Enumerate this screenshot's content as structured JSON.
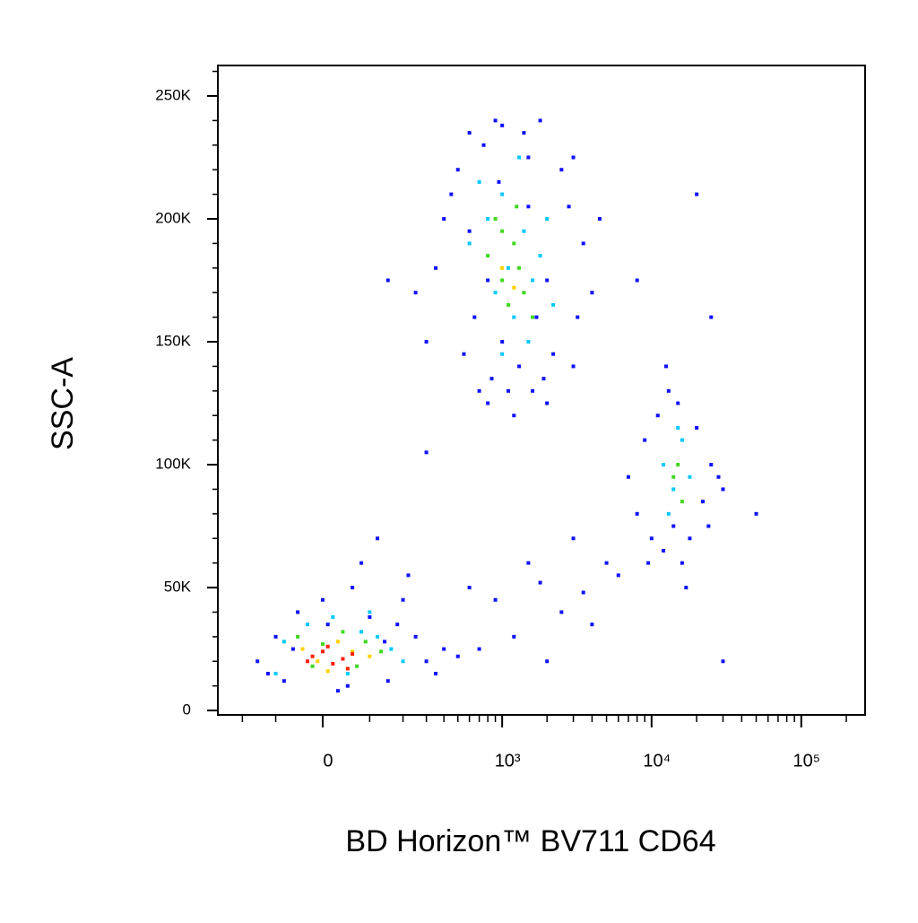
{
  "chart_data": {
    "type": "scatter",
    "xlabel": "BD Horizon™ BV711 CD64",
    "ylabel": "SSC-A",
    "xscale": "biexponential",
    "xlim": [
      -306,
      267000
    ],
    "ylim": [
      -1800,
      262400
    ],
    "xticks": [
      0,
      {
        "value": 1000,
        "label": "10³"
      },
      {
        "value": 10000,
        "label": "10⁴"
      },
      {
        "value": 100000,
        "label": "10⁵"
      }
    ],
    "yticks": [
      0,
      {
        "value": 50000,
        "label": "50K"
      },
      {
        "value": 100000,
        "label": "100K"
      },
      {
        "value": 150000,
        "label": "150K"
      },
      {
        "value": 200000,
        "label": "200K"
      },
      {
        "value": 250000,
        "label": "250K"
      }
    ],
    "xminorticks": [
      -200,
      -100,
      100,
      200,
      300,
      400,
      500,
      600,
      700,
      800,
      900,
      2000,
      3000,
      4000,
      5000,
      6000,
      7000,
      8000,
      9000,
      20000,
      30000,
      40000,
      50000,
      60000,
      70000,
      80000,
      90000,
      200000
    ],
    "yminorticks": [
      10000,
      20000,
      30000,
      40000,
      60000,
      70000,
      80000,
      90000,
      110000,
      120000,
      130000,
      140000,
      160000,
      170000,
      180000,
      190000,
      210000,
      220000,
      230000,
      240000,
      260000
    ],
    "series": [
      {
        "color": "#1010ff",
        "x": [
          250,
          300,
          400,
          500,
          600,
          700,
          800,
          900,
          1000,
          1200,
          1400,
          1600,
          1800,
          2000,
          2500,
          3000,
          3500,
          4000,
          4500,
          350,
          450,
          550,
          650,
          750,
          850,
          950,
          1100,
          1300,
          1500,
          1700,
          1900,
          2200,
          2800,
          3200,
          600,
          800,
          1000,
          1500,
          2000,
          3000,
          -150,
          -100,
          -80,
          -50,
          0,
          30,
          60,
          100,
          150,
          200,
          250,
          300,
          400,
          500,
          -120,
          80,
          120,
          180,
          220,
          350,
          -60,
          10,
          50,
          140,
          7000,
          8000,
          9000,
          10000,
          11000,
          12000,
          13000,
          14000,
          15000,
          16000,
          18000,
          20000,
          22000,
          25000,
          28000,
          30000,
          9500,
          12500,
          17000,
          24000,
          600,
          900,
          1200,
          1800,
          2500,
          3500,
          5000,
          6000,
          2000,
          4000,
          700,
          1500,
          3000,
          300,
          30000,
          50000,
          20000,
          8000,
          25000,
          150
        ],
        "y": [
          170000,
          150000,
          200000,
          220000,
          235000,
          130000,
          125000,
          240000,
          238000,
          120000,
          235000,
          130000,
          240000,
          125000,
          220000,
          140000,
          190000,
          170000,
          200000,
          180000,
          210000,
          145000,
          160000,
          230000,
          135000,
          215000,
          130000,
          140000,
          225000,
          160000,
          135000,
          145000,
          205000,
          160000,
          195000,
          175000,
          150000,
          205000,
          175000,
          225000,
          20000,
          30000,
          12000,
          40000,
          45000,
          8000,
          50000,
          38000,
          12000,
          45000,
          30000,
          20000,
          25000,
          22000,
          15000,
          60000,
          70000,
          35000,
          55000,
          15000,
          25000,
          35000,
          10000,
          28000,
          95000,
          80000,
          110000,
          70000,
          120000,
          65000,
          130000,
          75000,
          125000,
          60000,
          70000,
          115000,
          85000,
          100000,
          95000,
          90000,
          60000,
          140000,
          50000,
          75000,
          50000,
          45000,
          30000,
          52000,
          40000,
          48000,
          60000,
          55000,
          20000,
          35000,
          25000,
          60000,
          70000,
          105000,
          20000,
          80000,
          210000,
          175000,
          160000,
          175000
        ]
      },
      {
        "color": "#00c8ff",
        "x": [
          600,
          800,
          900,
          1000,
          1100,
          1200,
          1400,
          1600,
          1800,
          2200,
          700,
          1300,
          1500,
          1000,
          2000,
          -80,
          -30,
          20,
          80,
          120,
          160,
          200,
          -100,
          50,
          100,
          12000,
          14000,
          16000,
          13000,
          18000,
          15000
        ],
        "y": [
          190000,
          200000,
          170000,
          210000,
          180000,
          160000,
          195000,
          175000,
          185000,
          165000,
          215000,
          225000,
          150000,
          145000,
          200000,
          28000,
          35000,
          38000,
          32000,
          30000,
          25000,
          20000,
          15000,
          15000,
          40000,
          100000,
          90000,
          110000,
          80000,
          95000,
          115000
        ]
      },
      {
        "color": "#40d820",
        "x": [
          800,
          1000,
          1200,
          1400,
          900,
          1100,
          1300,
          1600,
          1000,
          1250,
          -50,
          0,
          40,
          90,
          130,
          -20,
          70,
          14000,
          16000,
          15000
        ],
        "y": [
          185000,
          175000,
          190000,
          170000,
          200000,
          165000,
          180000,
          160000,
          195000,
          205000,
          30000,
          27000,
          32000,
          28000,
          24000,
          18000,
          18000,
          95000,
          85000,
          100000
        ]
      },
      {
        "color": "#ffd000",
        "x": [
          -40,
          -10,
          30,
          60,
          100,
          10,
          1000,
          1200
        ],
        "y": [
          25000,
          20000,
          28000,
          24000,
          22000,
          16000,
          180000,
          172000
        ]
      },
      {
        "color": "#ff2000",
        "x": [
          -20,
          0,
          20,
          40,
          60,
          -30,
          10,
          50
        ],
        "y": [
          22000,
          24000,
          19000,
          21000,
          23000,
          20000,
          26000,
          17000
        ]
      }
    ]
  }
}
